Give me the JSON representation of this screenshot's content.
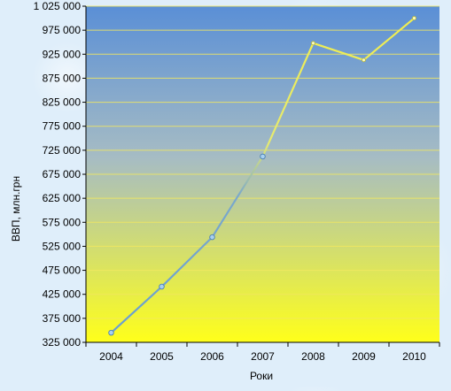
{
  "chart_data": {
    "type": "line",
    "title": "",
    "xlabel": "Роки",
    "ylabel": "ВВП, млн.грн",
    "categories": [
      "2004",
      "2005",
      "2006",
      "2007",
      "2008",
      "2009",
      "2010"
    ],
    "values": [
      345000,
      441000,
      544000,
      712000,
      948000,
      913000,
      1000000
    ],
    "ylim": [
      325000,
      1025000
    ],
    "yticks": [
      325000,
      375000,
      425000,
      475000,
      525000,
      575000,
      625000,
      675000,
      725000,
      775000,
      825000,
      875000,
      925000,
      975000,
      1025000
    ],
    "ytick_labels": [
      "325 000",
      "375 000",
      "425 000",
      "475 000",
      "525 000",
      "575 000",
      "625 000",
      "675 000",
      "725 000",
      "775 000",
      "825 000",
      "875 000",
      "925 000",
      "975 000",
      "1 025 000"
    ],
    "grid": true,
    "legend": "none",
    "colors": {
      "plot_top": "#5a8fd6",
      "plot_bottom": "#ffff1a",
      "gridline": "#f2e860",
      "line_lower": "#6a9fd0",
      "line_upper": "#f0ee50",
      "marker_fill": "#a8d0f0",
      "marker_stroke": "#4a7fb0"
    }
  }
}
